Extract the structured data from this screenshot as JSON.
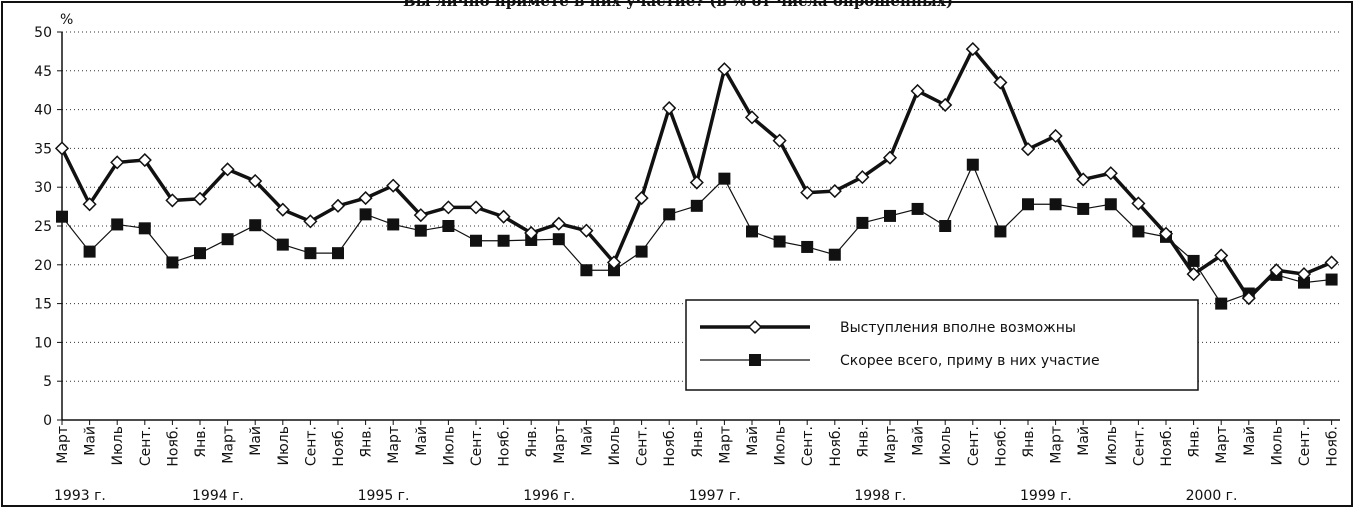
{
  "chart_data": {
    "type": "line",
    "title": "Вы лично примете в них участие? (в % от числа опрошенных)",
    "y_label": "%",
    "categories": [
      "Март",
      "Май",
      "Июль",
      "Сент.",
      "Нояб.",
      "Янв.",
      "Март",
      "Май",
      "Июль",
      "Сент.",
      "Нояб.",
      "Янв.",
      "Март",
      "Май",
      "Июль",
      "Сент.",
      "Нояб.",
      "Янв.",
      "Март",
      "Май",
      "Июль",
      "Сент.",
      "Нояб.",
      "Янв.",
      "Март",
      "Май",
      "Июль",
      "Сент.",
      "Нояб.",
      "Янв.",
      "Март",
      "Май",
      "Июль",
      "Сент.",
      "Нояб.",
      "Янв.",
      "Март",
      "Май",
      "Июль",
      "Сент.",
      "Нояб.",
      "Янв.",
      "Март",
      "Май",
      "Июль",
      "Сент.",
      "Нояб."
    ],
    "year_labels": [
      "1993 г.",
      null,
      null,
      null,
      null,
      "1994 г.",
      null,
      null,
      null,
      null,
      null,
      "1995 г.",
      null,
      null,
      null,
      null,
      null,
      "1996 г.",
      null,
      null,
      null,
      null,
      null,
      "1997 г.",
      null,
      null,
      null,
      null,
      null,
      "1998 г.",
      null,
      null,
      null,
      null,
      null,
      "1999 г.",
      null,
      null,
      null,
      null,
      null,
      "2000 г.",
      null,
      null,
      null,
      null,
      null
    ],
    "series": [
      {
        "name": "Выступления вполне возможны",
        "color": "#111111",
        "marker": "diamond",
        "values": [
          35,
          27.8,
          33.2,
          33.5,
          28.3,
          28.5,
          32.3,
          30.8,
          27.1,
          25.6,
          27.6,
          28.6,
          30.2,
          26.4,
          27.4,
          27.4,
          26.2,
          24.1,
          25.3,
          24.4,
          20.3,
          28.6,
          40.2,
          30.6,
          45.2,
          39,
          36,
          29.3,
          29.5,
          31.3,
          33.8,
          42.4,
          40.6,
          47.8,
          43.5,
          34.9,
          36.6,
          31,
          31.8,
          27.9,
          24,
          18.8,
          21.2,
          15.7,
          19.3,
          18.8,
          20.3
        ]
      },
      {
        "name": "Скорее всего, приму в них участие",
        "color": "#111111",
        "marker": "square",
        "values": [
          26.2,
          21.7,
          25.2,
          24.7,
          20.3,
          21.5,
          23.3,
          25.1,
          22.6,
          21.5,
          21.5,
          26.5,
          25.2,
          24.4,
          25,
          23.1,
          23.1,
          23.2,
          23.3,
          19.3,
          19.3,
          21.7,
          26.5,
          27.6,
          31.1,
          24.3,
          23,
          22.3,
          21.3,
          25.4,
          26.3,
          27.2,
          25,
          32.9,
          24.3,
          27.8,
          27.8,
          27.2,
          27.8,
          24.3,
          23.6,
          20.5,
          15,
          16.3,
          18.7,
          17.7,
          18.1
        ]
      }
    ],
    "ylim": [
      0,
      50
    ],
    "yticks": [
      0,
      5,
      10,
      15,
      20,
      25,
      30,
      35,
      40,
      45,
      50
    ],
    "grid": true,
    "legend": "lower right"
  }
}
